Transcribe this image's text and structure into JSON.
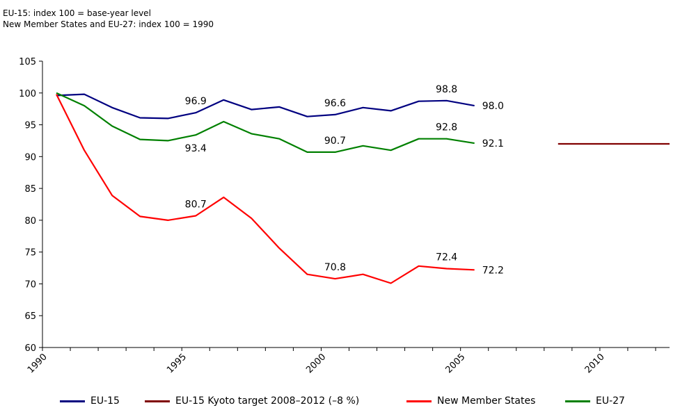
{
  "notes": [
    "EU-15: index 100 = base-year level",
    "New Member States and EU-27: index 100 = 1990"
  ],
  "chart_data": {
    "type": "line",
    "title": "",
    "xlabel": "",
    "ylabel": "",
    "xlim": [
      1990,
      2012.5
    ],
    "ylim": [
      60,
      105
    ],
    "yticks": [
      60,
      65,
      70,
      75,
      80,
      85,
      90,
      95,
      100,
      105
    ],
    "xtick_labels": [
      "1990",
      "1995",
      "2000",
      "2005",
      "2010"
    ],
    "xtick_values": [
      1990,
      1995,
      2000,
      2005,
      2010
    ],
    "grid": false,
    "legend": "bottom",
    "x": [
      1990.5,
      1991.5,
      1992.5,
      1993.5,
      1994.5,
      1995.5,
      1996.5,
      1997.5,
      1998.5,
      1999.5,
      2000.5,
      2001.5,
      2002.5,
      2003.5,
      2004.5,
      2005.5
    ],
    "series": [
      {
        "name": "EU-15",
        "color": "#000080",
        "values": [
          99.6,
          99.8,
          97.7,
          96.1,
          96.0,
          96.9,
          98.9,
          97.4,
          97.8,
          96.3,
          96.6,
          97.7,
          97.2,
          98.7,
          98.8,
          98.0
        ]
      },
      {
        "name": "EU-15 Kyoto target 2008–2012 (–8 %)",
        "color": "#800000",
        "x": [
          2008.5,
          2012.5
        ],
        "values": [
          92.0,
          92.0
        ]
      },
      {
        "name": "New Member States",
        "color": "#ff0000",
        "values": [
          99.8,
          91.0,
          83.9,
          80.6,
          80.0,
          80.7,
          83.6,
          80.3,
          75.6,
          71.5,
          70.8,
          71.5,
          70.1,
          72.8,
          72.4,
          72.2
        ]
      },
      {
        "name": "EU-27",
        "color": "#008000",
        "values": [
          100.0,
          98.0,
          94.8,
          92.7,
          92.5,
          93.4,
          95.5,
          93.6,
          92.8,
          90.7,
          90.7,
          91.7,
          91.0,
          92.8,
          92.8,
          92.1
        ]
      }
    ],
    "data_labels": [
      {
        "series": "EU-15",
        "x": 1995.5,
        "value": 96.9,
        "text": "96.9",
        "pos": "above"
      },
      {
        "series": "EU-15",
        "x": 2000.5,
        "value": 96.6,
        "text": "96.6",
        "pos": "above"
      },
      {
        "series": "EU-15",
        "x": 2004.5,
        "value": 98.8,
        "text": "98.8",
        "pos": "above"
      },
      {
        "series": "EU-15",
        "x": 2005.5,
        "value": 98.0,
        "text": "98.0",
        "pos": "right"
      },
      {
        "series": "EU-27",
        "x": 1995.5,
        "value": 93.4,
        "text": "93.4",
        "pos": "below"
      },
      {
        "series": "EU-27",
        "x": 2000.5,
        "value": 90.7,
        "text": "90.7",
        "pos": "above"
      },
      {
        "series": "EU-27",
        "x": 2004.5,
        "value": 92.8,
        "text": "92.8",
        "pos": "above"
      },
      {
        "series": "EU-27",
        "x": 2005.5,
        "value": 92.1,
        "text": "92.1",
        "pos": "right"
      },
      {
        "series": "New Member States",
        "x": 1995.5,
        "value": 80.7,
        "text": "80.7",
        "pos": "above"
      },
      {
        "series": "New Member States",
        "x": 2000.5,
        "value": 70.8,
        "text": "70.8",
        "pos": "above"
      },
      {
        "series": "New Member States",
        "x": 2004.5,
        "value": 72.4,
        "text": "72.4",
        "pos": "above"
      },
      {
        "series": "New Member States",
        "x": 2005.5,
        "value": 72.2,
        "text": "72.2",
        "pos": "right"
      }
    ]
  }
}
